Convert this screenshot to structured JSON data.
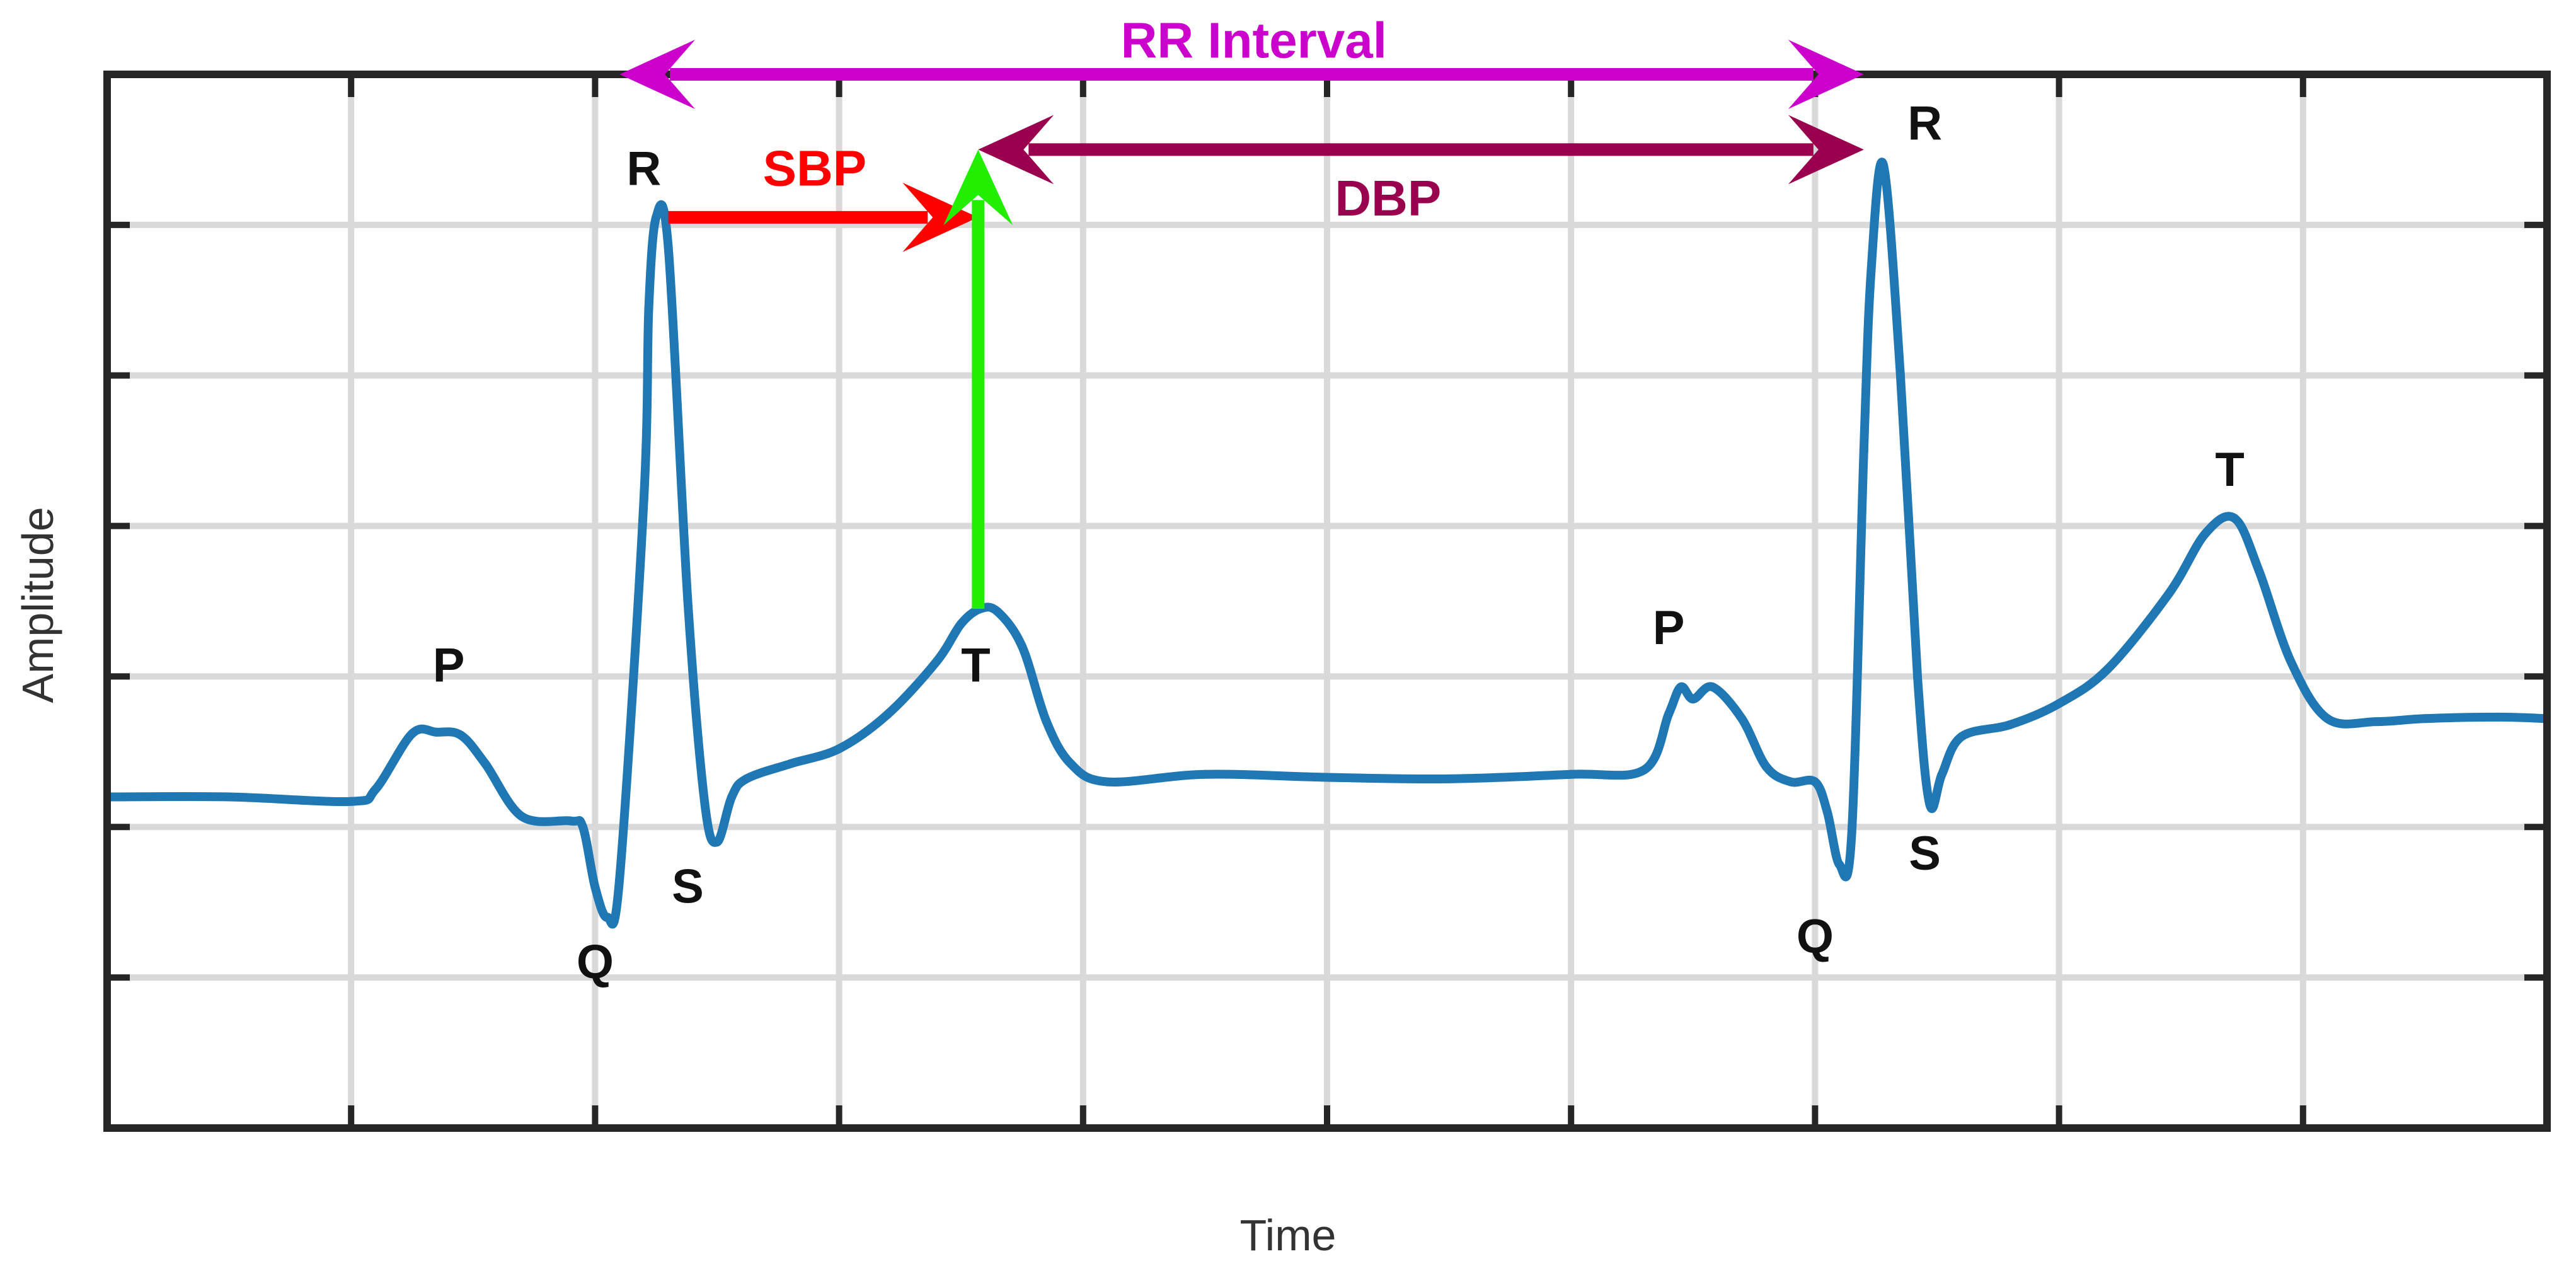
{
  "chart_data": {
    "type": "line",
    "title": "",
    "xlabel": "Time",
    "ylabel": "Amplitude",
    "xlim": [
      0,
      10
    ],
    "ylim": [
      0,
      7
    ],
    "grid": true,
    "ticks": "unlabeled",
    "series": [
      {
        "color": "#1f77b4",
        "points": [
          [
            0.0,
            2.2
          ],
          [
            0.5,
            2.2
          ],
          [
            1.0,
            2.17
          ],
          [
            1.1,
            2.25
          ],
          [
            1.25,
            2.62
          ],
          [
            1.35,
            2.63
          ],
          [
            1.45,
            2.61
          ],
          [
            1.55,
            2.42
          ],
          [
            1.7,
            2.07
          ],
          [
            1.9,
            2.04
          ],
          [
            1.95,
            2.0
          ],
          [
            2.0,
            1.6
          ],
          [
            2.05,
            1.4
          ],
          [
            2.1,
            1.65
          ],
          [
            2.2,
            4.18
          ],
          [
            2.22,
            5.45
          ],
          [
            2.25,
            6.05
          ],
          [
            2.3,
            5.85
          ],
          [
            2.38,
            3.5
          ],
          [
            2.45,
            2.15
          ],
          [
            2.5,
            1.9
          ],
          [
            2.56,
            2.2
          ],
          [
            2.62,
            2.32
          ],
          [
            2.8,
            2.42
          ],
          [
            3.0,
            2.52
          ],
          [
            3.2,
            2.75
          ],
          [
            3.4,
            3.1
          ],
          [
            3.5,
            3.35
          ],
          [
            3.58,
            3.45
          ],
          [
            3.65,
            3.43
          ],
          [
            3.75,
            3.2
          ],
          [
            3.85,
            2.7
          ],
          [
            3.95,
            2.42
          ],
          [
            4.1,
            2.3
          ],
          [
            4.5,
            2.35
          ],
          [
            5.0,
            2.33
          ],
          [
            5.5,
            2.32
          ],
          [
            6.0,
            2.35
          ],
          [
            6.3,
            2.38
          ],
          [
            6.4,
            2.75
          ],
          [
            6.45,
            2.93
          ],
          [
            6.5,
            2.85
          ],
          [
            6.58,
            2.93
          ],
          [
            6.7,
            2.72
          ],
          [
            6.8,
            2.4
          ],
          [
            6.9,
            2.3
          ],
          [
            7.0,
            2.3
          ],
          [
            7.05,
            2.1
          ],
          [
            7.1,
            1.75
          ],
          [
            7.15,
            1.95
          ],
          [
            7.2,
            4.5
          ],
          [
            7.23,
            5.7
          ],
          [
            7.28,
            6.4
          ],
          [
            7.35,
            5.0
          ],
          [
            7.42,
            3.0
          ],
          [
            7.47,
            2.15
          ],
          [
            7.52,
            2.35
          ],
          [
            7.6,
            2.6
          ],
          [
            7.8,
            2.68
          ],
          [
            8.0,
            2.82
          ],
          [
            8.2,
            3.05
          ],
          [
            8.45,
            3.55
          ],
          [
            8.6,
            3.95
          ],
          [
            8.72,
            4.05
          ],
          [
            8.82,
            3.7
          ],
          [
            8.95,
            3.1
          ],
          [
            9.1,
            2.72
          ],
          [
            9.3,
            2.7
          ],
          [
            9.5,
            2.72
          ],
          [
            9.8,
            2.73
          ],
          [
            10.0,
            2.72
          ]
        ]
      }
    ],
    "point_labels": [
      {
        "text": "P",
        "x": 1.4,
        "y": 3.05
      },
      {
        "text": "Q",
        "x": 2.0,
        "y": 1.08
      },
      {
        "text": "R",
        "x": 2.2,
        "y": 6.35
      },
      {
        "text": "S",
        "x": 2.38,
        "y": 1.58
      },
      {
        "text": "T",
        "x": 3.56,
        "y": 3.05
      },
      {
        "text": "P",
        "x": 6.4,
        "y": 3.3
      },
      {
        "text": "Q",
        "x": 7.0,
        "y": 1.25
      },
      {
        "text": "R",
        "x": 7.45,
        "y": 6.65
      },
      {
        "text": "S",
        "x": 7.45,
        "y": 1.8
      },
      {
        "text": "T",
        "x": 8.7,
        "y": 4.35
      }
    ],
    "annotations": [
      {
        "text": "RR Interval",
        "color": "#cc00cc",
        "from": [
          2.1,
          7.0
        ],
        "to": [
          7.2,
          7.0
        ],
        "heads": "both",
        "label_at": [
          4.7,
          7.2
        ]
      },
      {
        "text": "SBP",
        "color": "#ff0000",
        "from": [
          2.3,
          6.05
        ],
        "to": [
          3.57,
          6.05
        ],
        "heads": "end",
        "label_at": [
          2.9,
          6.35
        ]
      },
      {
        "text": "",
        "color": "#22ee00",
        "from": [
          3.57,
          3.45
        ],
        "to": [
          3.57,
          6.5
        ],
        "heads": "end"
      },
      {
        "text": "DBP",
        "color": "#99004d",
        "from": [
          3.57,
          6.5
        ],
        "to": [
          7.2,
          6.5
        ],
        "heads": "both",
        "label_at": [
          5.25,
          6.15
        ]
      }
    ]
  }
}
